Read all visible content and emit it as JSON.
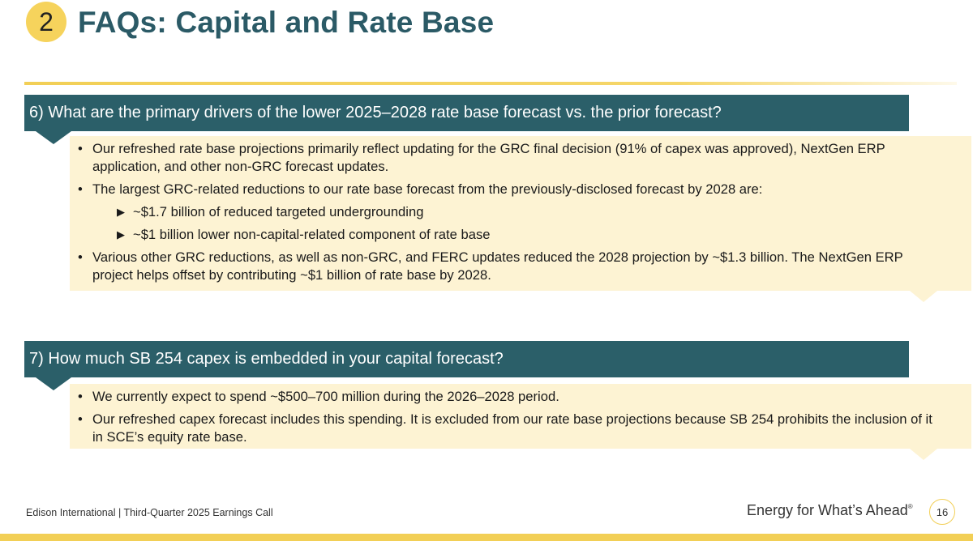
{
  "header": {
    "section_number": "2",
    "title": "FAQs: Capital and Rate Base"
  },
  "faqs": [
    {
      "question": "6) What are the primary drivers of the lower 2025–2028 rate base forecast vs. the prior forecast?",
      "bullets": [
        "Our refreshed rate base projections primarily reflect updating for the GRC final decision (91% of capex was approved), NextGen ERP application, and other non-GRC forecast updates.",
        "The largest GRC-related reductions to our rate base forecast from the previously-disclosed forecast by 2028 are:",
        "Various other GRC reductions, as well as non-GRC, and FERC updates reduced the 2028 projection by ~$1.3 billion. The NextGen ERP project helps offset by contributing ~$1 billion of rate base by 2028."
      ],
      "sub_bullets": [
        "~$1.7 billion of reduced targeted undergrounding",
        "~$1 billion lower non-capital-related component of rate base"
      ]
    },
    {
      "question": "7) How much SB 254 capex is embedded in your capital forecast?",
      "bullets": [
        "We currently expect to spend ~$500–700 million during the 2026–2028 period.",
        "Our refreshed capex forecast includes this spending. It is excluded from our rate base projections because SB 254 prohibits the inclusion of it in SCE’s equity rate base."
      ]
    }
  ],
  "footer": {
    "company": "Edison International",
    "separator": "|",
    "event": "Third-Quarter 2025 Earnings Call",
    "tagline": "Energy for What’s Ahead",
    "tagline_mark": "®",
    "page_number": "16"
  },
  "colors": {
    "accent_yellow": "#f2cf56",
    "teal": "#2b5f69",
    "answer_bg": "#fdf3d3"
  }
}
